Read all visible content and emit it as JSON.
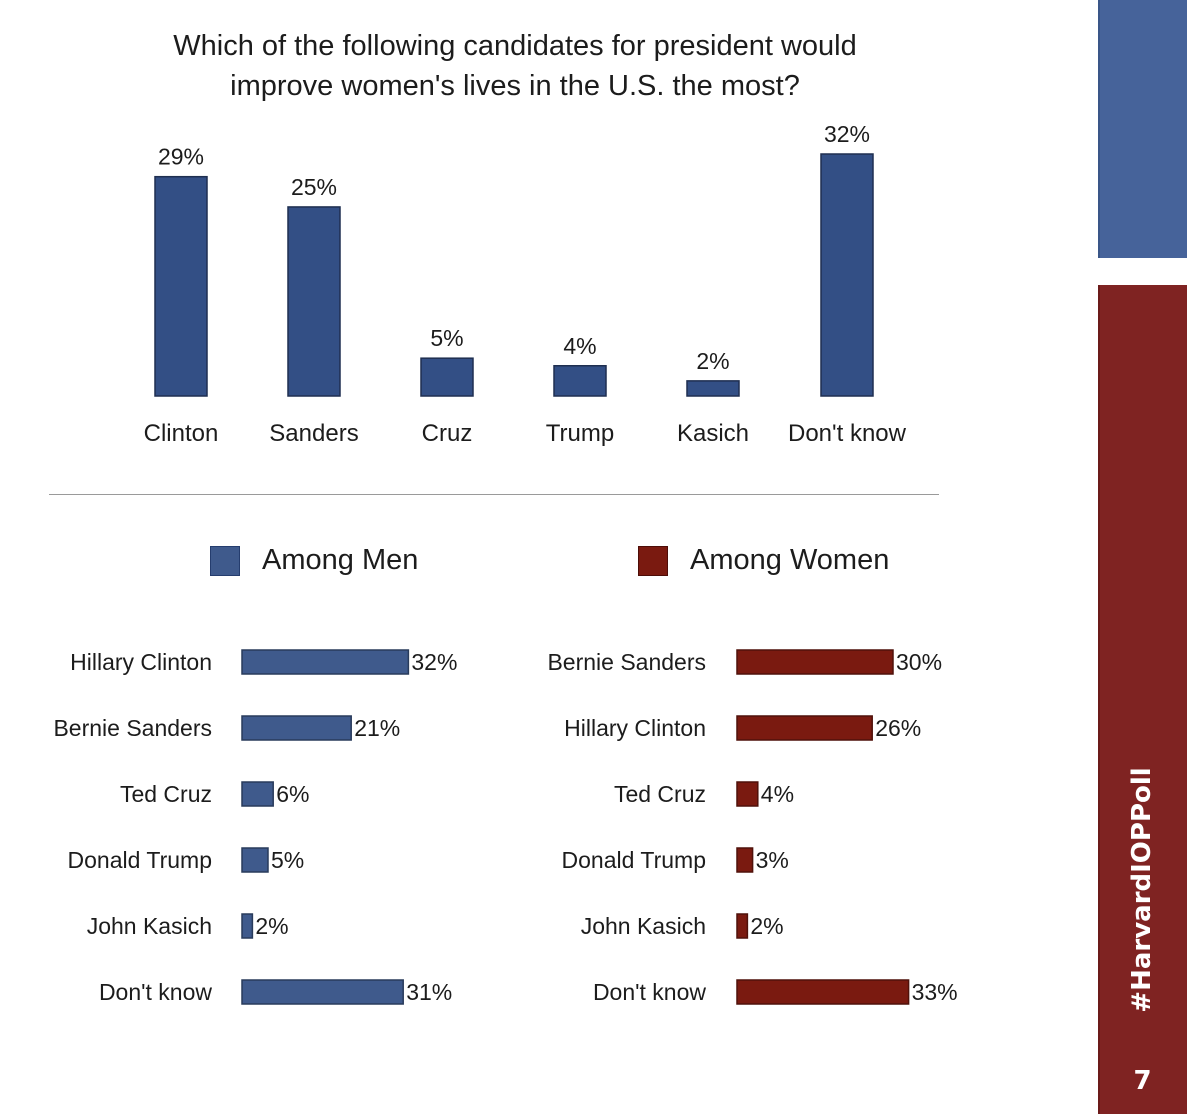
{
  "chart_data": [
    {
      "type": "bar",
      "title": "Which of the following candidates for president would improve women's lives in the U.S. the most?",
      "title_lines": [
        "Which of the following candidates for president would",
        "improve women's lives in the U.S. the most?"
      ],
      "categories": [
        "Clinton",
        "Sanders",
        "Cruz",
        "Trump",
        "Kasich",
        "Don't know"
      ],
      "values": [
        29,
        25,
        5,
        4,
        2,
        32
      ],
      "labels": [
        "29%",
        "25%",
        "5%",
        "4%",
        "2%",
        "32%"
      ],
      "xlabel": "",
      "ylabel": "",
      "ylim": [
        0,
        32
      ],
      "grid": false,
      "color": "#334f85",
      "unit": "%"
    },
    {
      "type": "bar",
      "orientation": "horizontal",
      "title": "Among Men",
      "categories": [
        "Hillary Clinton",
        "Bernie Sanders",
        "Ted Cruz",
        "Donald Trump",
        "John Kasich",
        "Don't know"
      ],
      "values": [
        32,
        21,
        6,
        5,
        2,
        31
      ],
      "labels": [
        "32%",
        "21%",
        "6%",
        "5%",
        "2%",
        "31%"
      ],
      "xlim": [
        0,
        33
      ],
      "grid": false,
      "color": "#3f5a8c",
      "unit": "%"
    },
    {
      "type": "bar",
      "orientation": "horizontal",
      "title": "Among Women",
      "categories": [
        "Bernie Sanders",
        "Hillary Clinton",
        "Ted Cruz",
        "Donald Trump",
        "John Kasich",
        "Don't know"
      ],
      "values": [
        30,
        26,
        4,
        3,
        2,
        33
      ],
      "labels": [
        "30%",
        "26%",
        "4%",
        "3%",
        "2%",
        "33%"
      ],
      "xlim": [
        0,
        33
      ],
      "grid": false,
      "color": "#7a1a10",
      "unit": "%"
    }
  ],
  "legend": {
    "men": {
      "label": "Among Men",
      "color": "#3f5a8c"
    },
    "women": {
      "label": "Among Women",
      "color": "#7a1a10"
    }
  },
  "sidebar": {
    "hashtag": "#HarvardIOPPoll",
    "page_number": "7",
    "top_color": "#46639a",
    "bottom_color": "#7f2322"
  }
}
